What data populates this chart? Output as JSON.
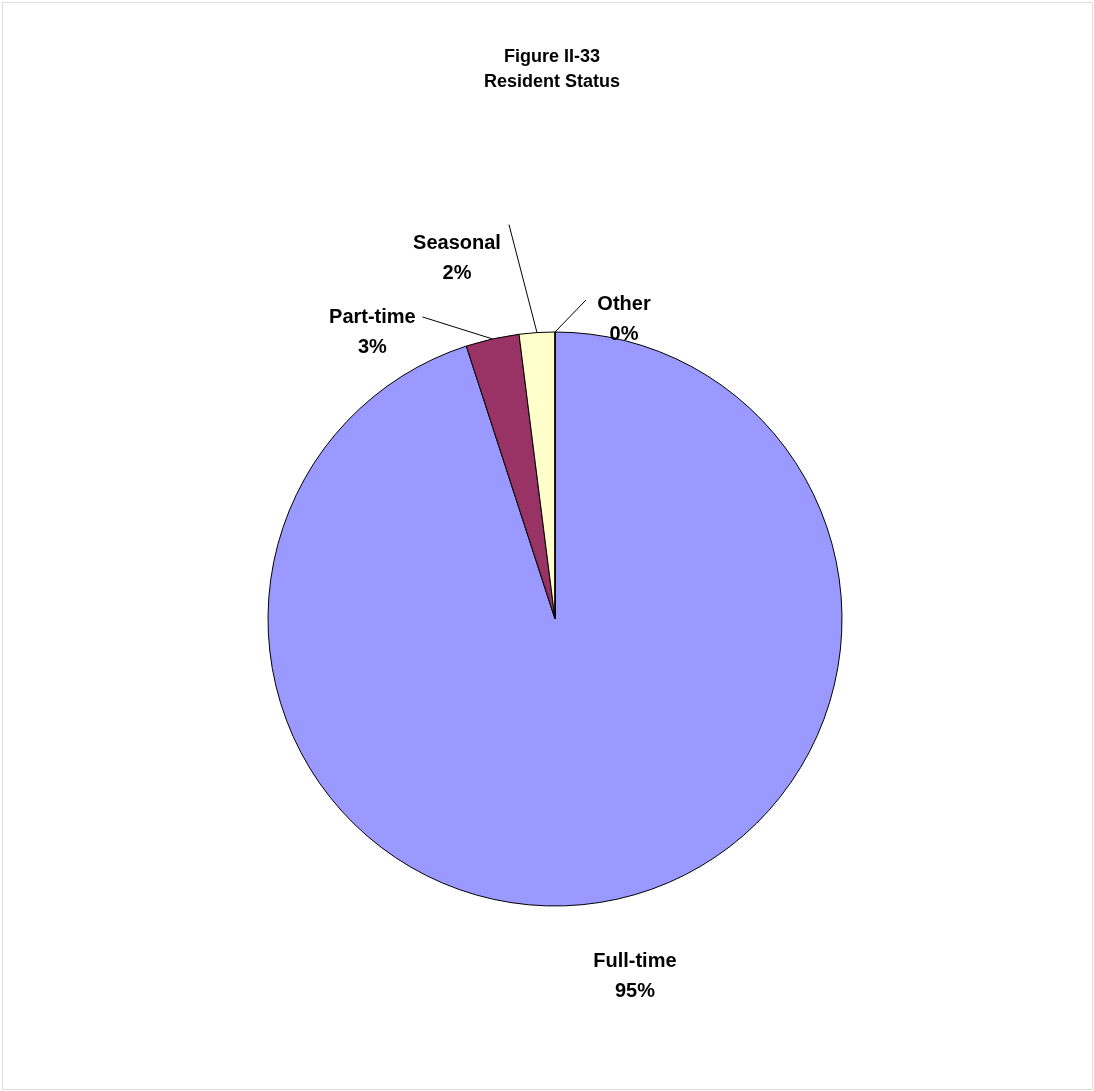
{
  "chart_data": {
    "type": "pie",
    "title": "Figure II-33",
    "subtitle": "Resident Status",
    "categories": [
      "Full-time",
      "Part-time",
      "Seasonal",
      "Other"
    ],
    "values": [
      95,
      3,
      2,
      0
    ],
    "value_labels": [
      "95%",
      "3%",
      "2%",
      "0%"
    ],
    "colors": [
      "#9999ff",
      "#993366",
      "#ffffcc",
      "#ccffff"
    ]
  }
}
